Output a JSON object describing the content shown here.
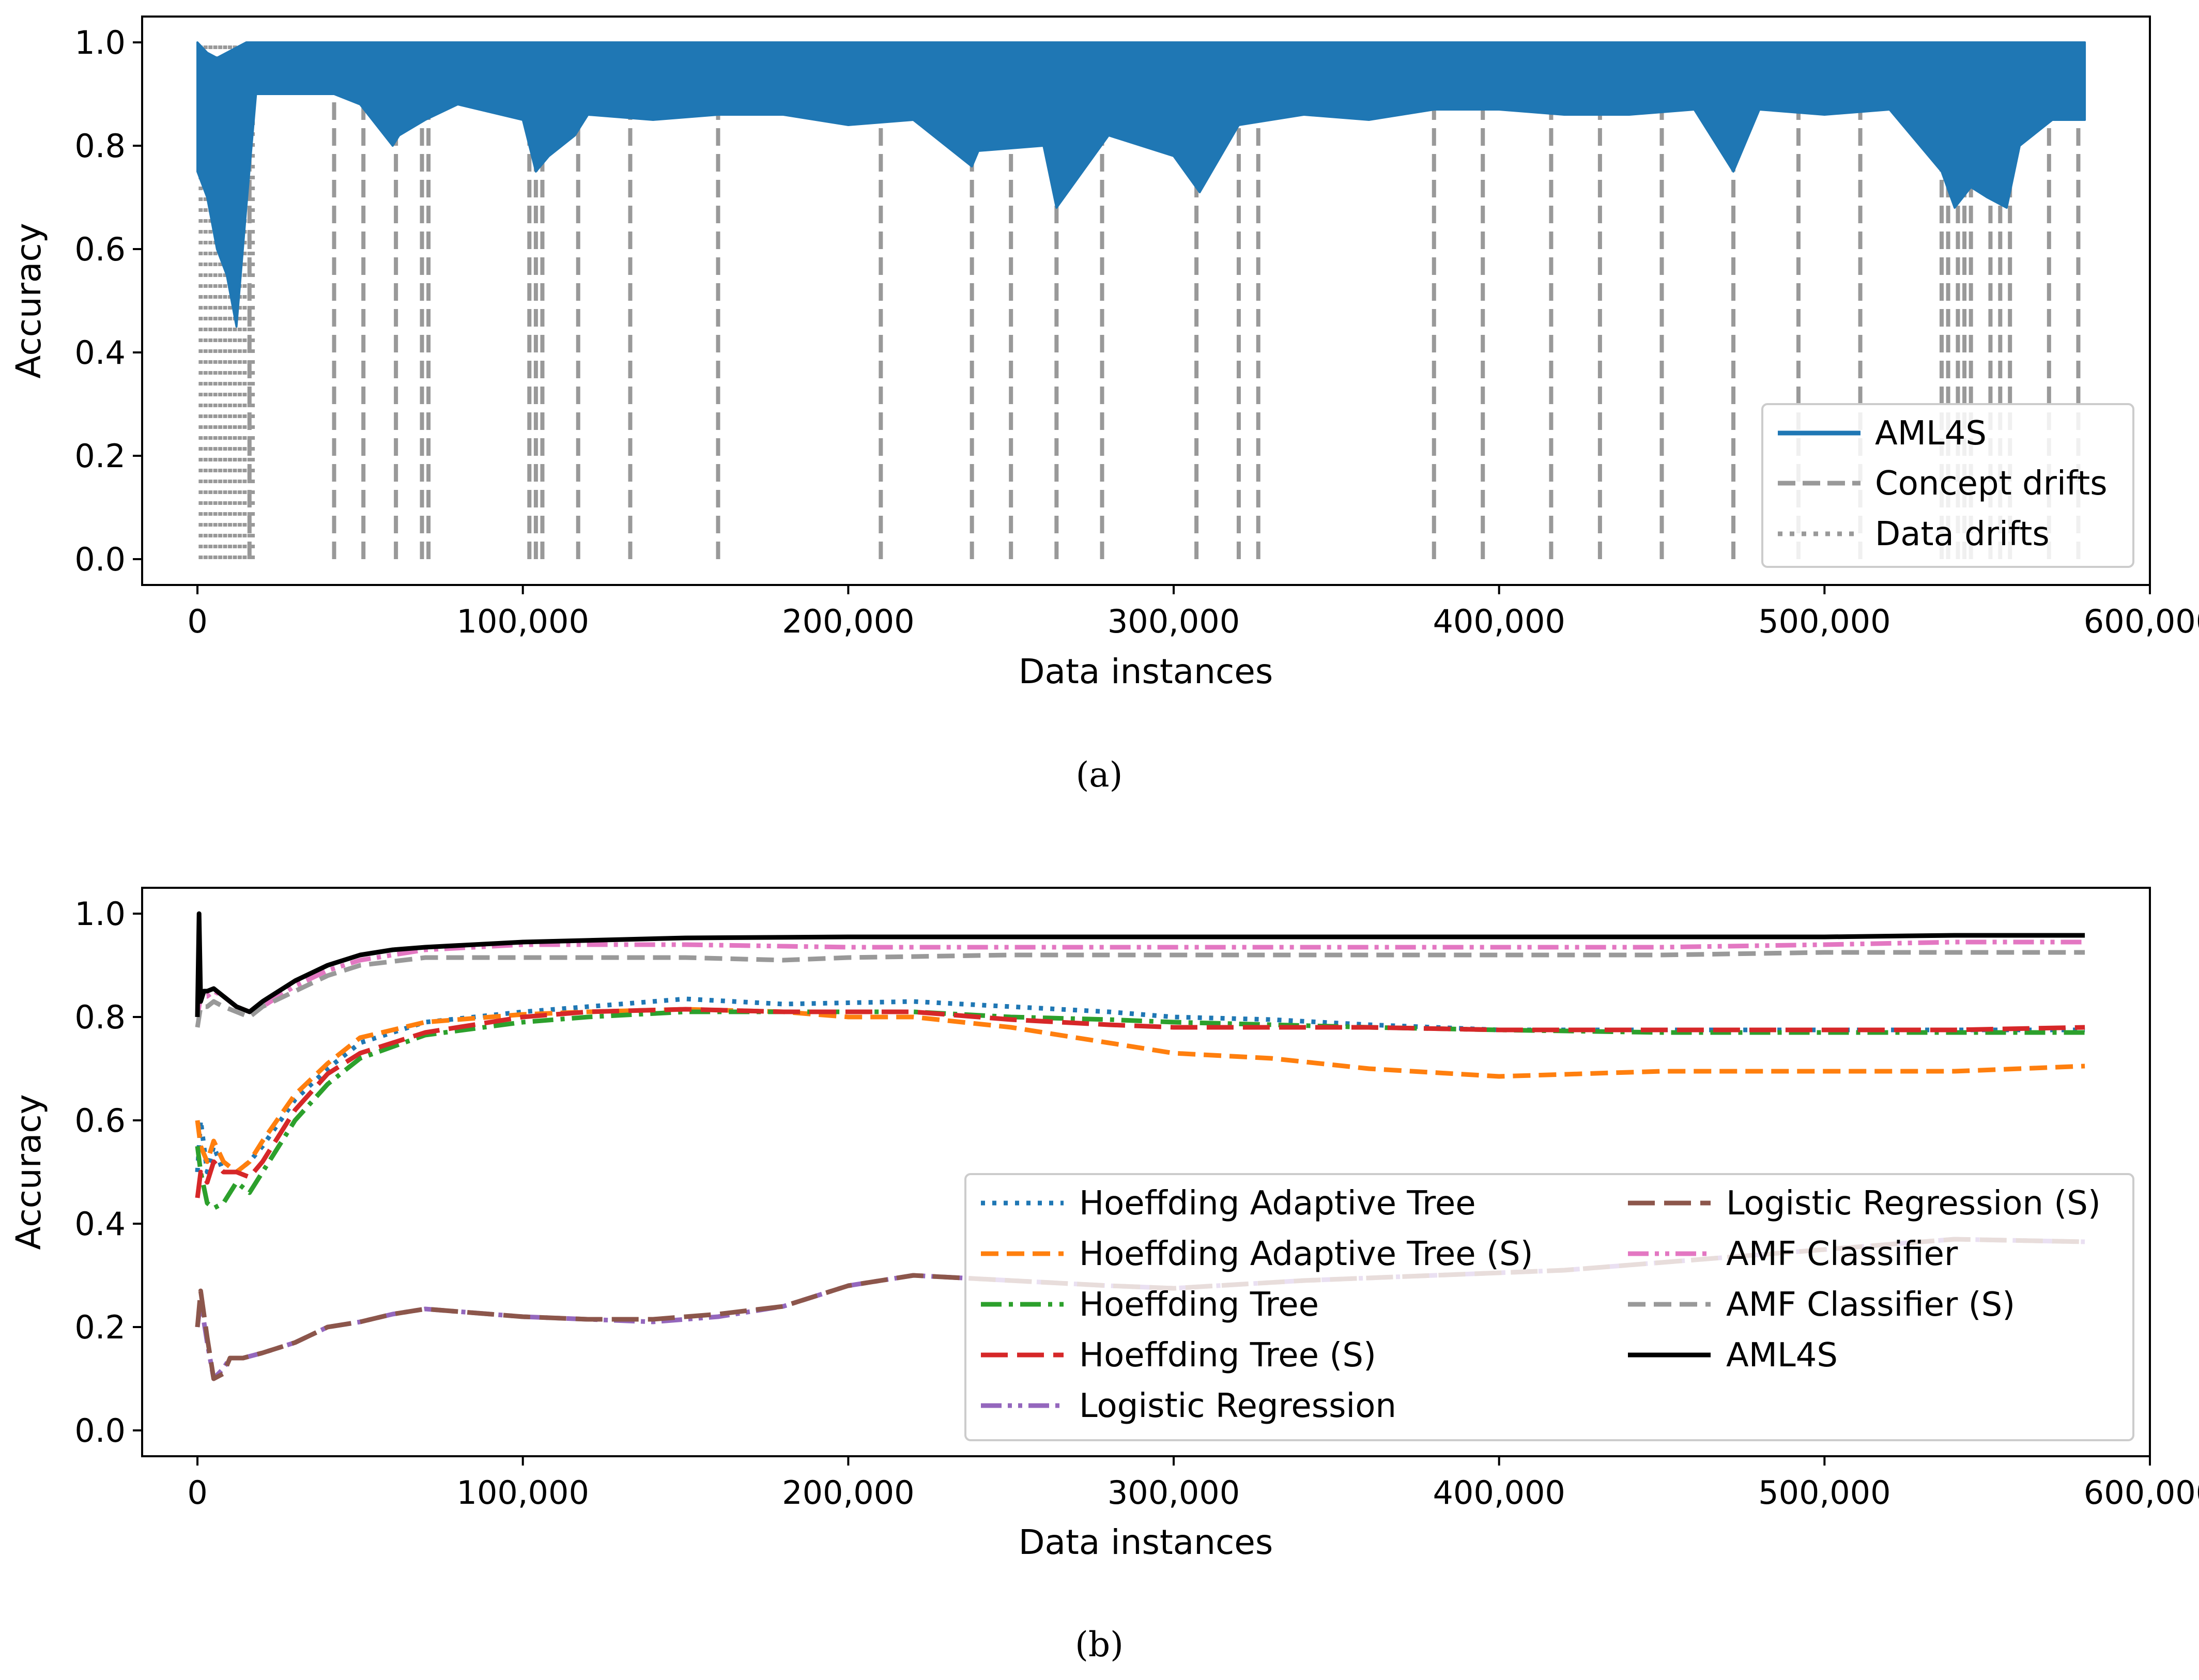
{
  "chart_data": [
    {
      "type": "line",
      "caption": "(a)",
      "xlabel": "Data instances",
      "ylabel": "Accuracy",
      "xlim": [
        -17000,
        600000
      ],
      "ylim": [
        -0.05,
        1.05
      ],
      "xticks": [
        0,
        100000,
        200000,
        300000,
        400000,
        500000,
        600000
      ],
      "xtick_labels": [
        "0",
        "100,000",
        "200,000",
        "300,000",
        "400,000",
        "500,000",
        "600,000"
      ],
      "yticks": [
        0.0,
        0.2,
        0.4,
        0.6,
        0.8,
        1.0
      ],
      "ytick_labels": [
        "0.0",
        "0.2",
        "0.4",
        "0.6",
        "0.8",
        "1.0"
      ],
      "grid": false,
      "legend_position": "lower-right",
      "legend": [
        "AML4S",
        "Concept drifts",
        "Data drifts"
      ],
      "colors": {
        "aml4s": "#1f77b4",
        "concept": "#999999",
        "data": "#999999"
      },
      "aml4s_accuracy": {
        "x": [
          0,
          3000,
          6000,
          9000,
          12000,
          15000,
          18000,
          30000,
          42000,
          50000,
          60000,
          62000,
          70000,
          80000,
          100000,
          104000,
          108000,
          116000,
          120000,
          140000,
          160000,
          180000,
          200000,
          220000,
          238000,
          240000,
          260000,
          264000,
          280000,
          300000,
          308000,
          320000,
          340000,
          360000,
          380000,
          400000,
          420000,
          440000,
          460000,
          472000,
          480000,
          500000,
          520000,
          536000,
          540000,
          545000,
          550000,
          556000,
          560000,
          570000,
          580000
        ],
        "high": [
          1.0,
          0.98,
          0.97,
          0.98,
          0.99,
          1.0,
          1.0,
          1.0,
          1.0,
          1.0,
          1.0,
          1.0,
          1.0,
          1.0,
          1.0,
          1.0,
          1.0,
          1.0,
          1.0,
          1.0,
          1.0,
          1.0,
          1.0,
          1.0,
          1.0,
          1.0,
          1.0,
          1.0,
          1.0,
          1.0,
          1.0,
          1.0,
          1.0,
          1.0,
          1.0,
          1.0,
          1.0,
          1.0,
          1.0,
          1.0,
          1.0,
          1.0,
          1.0,
          1.0,
          1.0,
          1.0,
          1.0,
          1.0,
          1.0,
          1.0,
          1.0
        ],
        "low": [
          0.75,
          0.7,
          0.6,
          0.55,
          0.45,
          0.68,
          0.9,
          0.9,
          0.9,
          0.88,
          0.8,
          0.82,
          0.85,
          0.88,
          0.85,
          0.75,
          0.78,
          0.82,
          0.86,
          0.85,
          0.86,
          0.86,
          0.84,
          0.85,
          0.76,
          0.79,
          0.8,
          0.68,
          0.82,
          0.78,
          0.71,
          0.84,
          0.86,
          0.85,
          0.87,
          0.87,
          0.86,
          0.86,
          0.87,
          0.75,
          0.87,
          0.86,
          0.87,
          0.75,
          0.68,
          0.72,
          0.7,
          0.68,
          0.8,
          0.85,
          0.85
        ]
      },
      "concept_drifts": [
        16000,
        42000,
        51000,
        61000,
        69000,
        71000,
        102000,
        104000,
        106000,
        117000,
        133000,
        160000,
        210000,
        238000,
        250000,
        264000,
        278000,
        307000,
        320000,
        326000,
        380000,
        395000,
        416000,
        431000,
        450000,
        472000,
        492000,
        511000,
        536000,
        538000,
        541000,
        543000,
        545000,
        551000,
        554000,
        557000,
        569000,
        578000
      ],
      "data_drifts": [
        1000,
        2500,
        4000,
        5500,
        7000,
        8500,
        10000,
        11500,
        13000,
        14500,
        16000,
        17000
      ]
    },
    {
      "type": "line",
      "caption": "(b)",
      "xlabel": "Data instances",
      "ylabel": "Accuracy",
      "xlim": [
        -17000,
        600000
      ],
      "ylim": [
        -0.05,
        1.05
      ],
      "xticks": [
        0,
        100000,
        200000,
        300000,
        400000,
        500000,
        600000
      ],
      "xtick_labels": [
        "0",
        "100,000",
        "200,000",
        "300,000",
        "400,000",
        "500,000",
        "600,000"
      ],
      "yticks": [
        0.0,
        0.2,
        0.4,
        0.6,
        0.8,
        1.0
      ],
      "ytick_labels": [
        "0.0",
        "0.2",
        "0.4",
        "0.6",
        "0.8",
        "1.0"
      ],
      "grid": false,
      "legend_position": "lower-right",
      "series": [
        {
          "name": "Hoeffding Adaptive Tree",
          "color": "#1f77b4",
          "dash": "dotted",
          "x": [
            0,
            1000,
            3000,
            5000,
            8000,
            12000,
            16000,
            20000,
            30000,
            40000,
            50000,
            70000,
            100000,
            120000,
            150000,
            180000,
            220000,
            250000,
            280000,
            300000,
            330000,
            360000,
            400000,
            450000,
            500000,
            540000,
            580000
          ],
          "y": [
            0.5,
            0.6,
            0.5,
            0.55,
            0.5,
            0.5,
            0.52,
            0.55,
            0.64,
            0.7,
            0.75,
            0.79,
            0.81,
            0.82,
            0.835,
            0.825,
            0.83,
            0.82,
            0.81,
            0.8,
            0.795,
            0.785,
            0.775,
            0.775,
            0.775,
            0.775,
            0.775
          ]
        },
        {
          "name": "Hoeffding Adaptive Tree (S)",
          "color": "#ff7f0e",
          "dash": "dashed",
          "x": [
            0,
            1000,
            3000,
            5000,
            8000,
            12000,
            16000,
            20000,
            30000,
            40000,
            50000,
            70000,
            100000,
            120000,
            150000,
            180000,
            200000,
            220000,
            250000,
            280000,
            300000,
            330000,
            360000,
            400000,
            450000,
            500000,
            540000,
            580000
          ],
          "y": [
            0.6,
            0.55,
            0.52,
            0.56,
            0.52,
            0.5,
            0.52,
            0.56,
            0.65,
            0.71,
            0.76,
            0.79,
            0.805,
            0.81,
            0.815,
            0.81,
            0.8,
            0.8,
            0.78,
            0.75,
            0.73,
            0.72,
            0.7,
            0.685,
            0.695,
            0.695,
            0.695,
            0.705
          ]
        },
        {
          "name": "Hoeffding Tree",
          "color": "#2ca02c",
          "dash": "dashdot",
          "x": [
            0,
            1000,
            3000,
            5000,
            8000,
            12000,
            16000,
            20000,
            30000,
            40000,
            50000,
            70000,
            100000,
            120000,
            150000,
            180000,
            220000,
            250000,
            280000,
            300000,
            330000,
            360000,
            400000,
            450000,
            500000,
            540000,
            580000
          ],
          "y": [
            0.55,
            0.5,
            0.44,
            0.43,
            0.44,
            0.48,
            0.46,
            0.5,
            0.6,
            0.67,
            0.72,
            0.765,
            0.79,
            0.8,
            0.81,
            0.81,
            0.81,
            0.8,
            0.795,
            0.79,
            0.785,
            0.78,
            0.775,
            0.77,
            0.77,
            0.77,
            0.77
          ]
        },
        {
          "name": "Hoeffding Tree (S)",
          "color": "#d62728",
          "dash": "longdash",
          "x": [
            0,
            1000,
            3000,
            5000,
            8000,
            12000,
            16000,
            20000,
            30000,
            40000,
            50000,
            70000,
            100000,
            120000,
            150000,
            180000,
            220000,
            250000,
            280000,
            300000,
            330000,
            360000,
            400000,
            450000,
            500000,
            540000,
            580000
          ],
          "y": [
            0.45,
            0.5,
            0.48,
            0.52,
            0.5,
            0.5,
            0.49,
            0.52,
            0.62,
            0.69,
            0.73,
            0.77,
            0.8,
            0.81,
            0.815,
            0.81,
            0.81,
            0.795,
            0.785,
            0.78,
            0.78,
            0.78,
            0.775,
            0.775,
            0.775,
            0.775,
            0.78
          ]
        },
        {
          "name": "Logistic Regression",
          "color": "#9467bd",
          "dash": "dashdotdot",
          "x": [
            0,
            1000,
            3000,
            5000,
            8000,
            10000,
            14000,
            20000,
            30000,
            40000,
            50000,
            60000,
            70000,
            80000,
            100000,
            120000,
            140000,
            160000,
            180000,
            200000,
            220000,
            250000,
            280000,
            300000,
            340000,
            380000,
            420000,
            460000,
            500000,
            540000,
            580000
          ],
          "y": [
            0.2,
            0.25,
            0.17,
            0.1,
            0.12,
            0.14,
            0.14,
            0.15,
            0.17,
            0.2,
            0.21,
            0.225,
            0.235,
            0.23,
            0.22,
            0.215,
            0.21,
            0.22,
            0.24,
            0.28,
            0.3,
            0.29,
            0.28,
            0.275,
            0.29,
            0.3,
            0.31,
            0.33,
            0.35,
            0.37,
            0.365
          ]
        },
        {
          "name": "Logistic Regression (S)",
          "color": "#8c564b",
          "dash": "longdash",
          "x": [
            0,
            1000,
            3000,
            5000,
            8000,
            10000,
            14000,
            20000,
            30000,
            40000,
            50000,
            60000,
            70000,
            80000,
            100000,
            120000,
            140000,
            160000,
            180000,
            200000,
            220000,
            250000,
            280000,
            300000,
            340000,
            380000,
            420000,
            460000,
            500000,
            540000,
            580000
          ],
          "y": [
            0.2,
            0.27,
            0.18,
            0.1,
            0.11,
            0.14,
            0.14,
            0.15,
            0.17,
            0.2,
            0.21,
            0.225,
            0.235,
            0.23,
            0.22,
            0.215,
            0.215,
            0.225,
            0.24,
            0.28,
            0.3,
            0.29,
            0.28,
            0.275,
            0.29,
            0.3,
            0.31,
            0.33,
            0.35,
            0.37,
            0.365
          ]
        },
        {
          "name": "AMF Classifier",
          "color": "#e377c2",
          "dash": "dashdotdot",
          "x": [
            0,
            1000,
            3000,
            5000,
            8000,
            12000,
            16000,
            20000,
            30000,
            40000,
            50000,
            70000,
            100000,
            150000,
            200000,
            250000,
            300000,
            350000,
            400000,
            450000,
            500000,
            540000,
            580000
          ],
          "y": [
            0.8,
            0.84,
            0.84,
            0.85,
            0.84,
            0.82,
            0.81,
            0.82,
            0.86,
            0.89,
            0.91,
            0.93,
            0.94,
            0.94,
            0.935,
            0.935,
            0.935,
            0.935,
            0.935,
            0.935,
            0.94,
            0.945,
            0.945
          ]
        },
        {
          "name": "AMF Classifier (S)",
          "color": "#999999",
          "dash": "dashed",
          "x": [
            0,
            1000,
            3000,
            5000,
            8000,
            12000,
            16000,
            20000,
            30000,
            40000,
            50000,
            70000,
            100000,
            150000,
            180000,
            200000,
            250000,
            300000,
            350000,
            400000,
            450000,
            500000,
            540000,
            580000
          ],
          "y": [
            0.78,
            0.82,
            0.82,
            0.83,
            0.82,
            0.81,
            0.8,
            0.82,
            0.85,
            0.88,
            0.9,
            0.915,
            0.915,
            0.915,
            0.91,
            0.915,
            0.92,
            0.92,
            0.92,
            0.92,
            0.92,
            0.925,
            0.925,
            0.925
          ]
        },
        {
          "name": "AML4S",
          "color": "#000000",
          "dash": "solid",
          "x": [
            0,
            500,
            1000,
            2000,
            3000,
            5000,
            8000,
            12000,
            16000,
            20000,
            30000,
            40000,
            50000,
            60000,
            70000,
            100000,
            150000,
            200000,
            250000,
            300000,
            350000,
            400000,
            450000,
            500000,
            540000,
            580000
          ],
          "y": [
            0.8,
            1.0,
            0.83,
            0.85,
            0.85,
            0.855,
            0.84,
            0.82,
            0.81,
            0.83,
            0.87,
            0.9,
            0.92,
            0.93,
            0.935,
            0.945,
            0.953,
            0.955,
            0.955,
            0.955,
            0.955,
            0.955,
            0.955,
            0.955,
            0.958,
            0.958
          ]
        }
      ]
    }
  ]
}
